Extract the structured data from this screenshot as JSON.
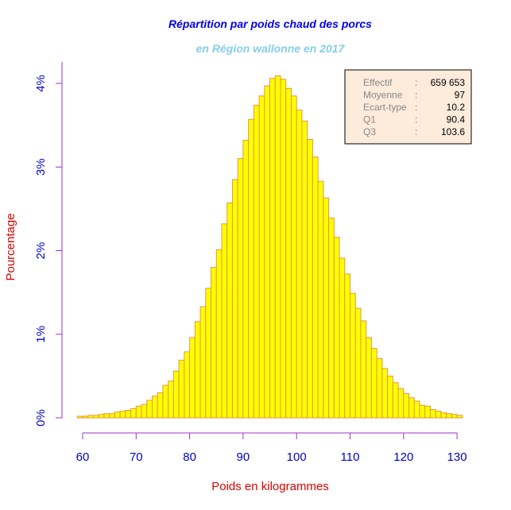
{
  "chart_data": {
    "type": "bar",
    "title": "Répartition par poids chaud des porcs",
    "subtitle": "en Région wallonne en 2017",
    "xlabel": "Poids en kilogrammes",
    "ylabel": "Pourcentage",
    "xlim": [
      60,
      130
    ],
    "ylim": [
      0,
      4
    ],
    "x_ticks": [
      60,
      70,
      80,
      90,
      100,
      110,
      120,
      130
    ],
    "x_tick_labels": [
      "60",
      "70",
      "80",
      "90",
      "100",
      "110",
      "120",
      "130"
    ],
    "y_ticks": [
      0,
      1,
      2,
      3,
      4
    ],
    "y_tick_labels": [
      "0%",
      "1%",
      "2%",
      "3%",
      "4%"
    ],
    "bin_start": 59,
    "bin_width": 1,
    "values": [
      0.02,
      0.02,
      0.03,
      0.03,
      0.04,
      0.05,
      0.05,
      0.07,
      0.08,
      0.09,
      0.11,
      0.14,
      0.16,
      0.21,
      0.26,
      0.3,
      0.39,
      0.44,
      0.56,
      0.69,
      0.79,
      0.96,
      1.15,
      1.33,
      1.55,
      1.8,
      2.01,
      2.32,
      2.57,
      2.85,
      3.1,
      3.32,
      3.57,
      3.74,
      3.85,
      3.97,
      4.06,
      4.09,
      4.05,
      3.94,
      3.85,
      3.68,
      3.55,
      3.33,
      3.12,
      2.83,
      2.63,
      2.39,
      2.16,
      1.91,
      1.72,
      1.49,
      1.31,
      1.16,
      0.96,
      0.83,
      0.71,
      0.59,
      0.5,
      0.42,
      0.35,
      0.29,
      0.24,
      0.2,
      0.15,
      0.14,
      0.1,
      0.08,
      0.06,
      0.05,
      0.04,
      0.03
    ],
    "grid": false,
    "colors": {
      "bar_fill": "#FFFF00",
      "bar_stroke": "#E8963C",
      "axis": "#9933CC",
      "tick_label": "#0000CC",
      "axis_title": "#DD0000",
      "title": "#0000EE",
      "subtitle": "#87CEEB",
      "legend_bg": "#FDEBDB"
    },
    "stats_box": {
      "placement": "top-right",
      "rows": [
        {
          "label": "Effectif",
          "sep": ":",
          "value": "659 653"
        },
        {
          "label": "Moyenne",
          "sep": ":",
          "value": "97"
        },
        {
          "label": "Ecart-type",
          "sep": ":",
          "value": "10.2"
        },
        {
          "label": "Q1",
          "sep": ":",
          "value": "90.4"
        },
        {
          "label": "Q3",
          "sep": ":",
          "value": "103.6"
        }
      ]
    }
  }
}
